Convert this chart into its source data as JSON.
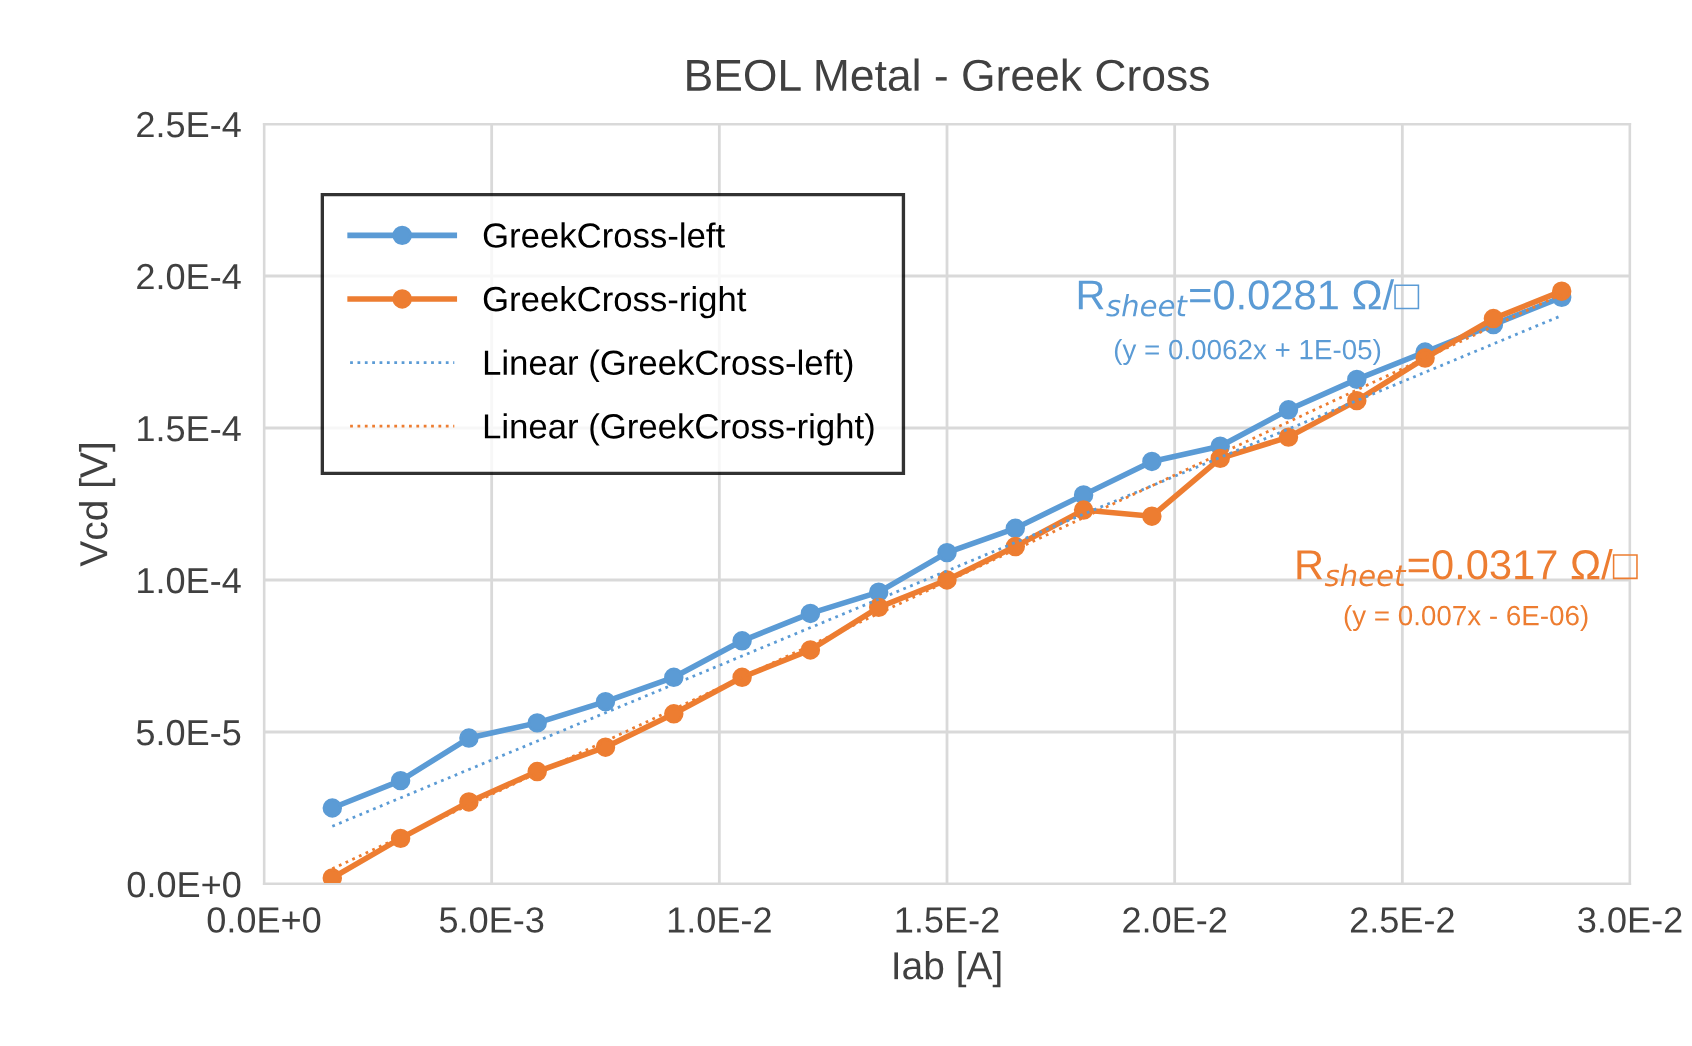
{
  "chart_data": {
    "type": "line",
    "title": "BEOL Metal - Greek Cross",
    "xlabel": "Iab [A]",
    "ylabel": "Vcd [V]",
    "series": [
      {
        "name": "GreekCross-left",
        "color": "#5b9bd5",
        "marker": "circle",
        "x": [
          0.0015,
          0.003,
          0.0045,
          0.006,
          0.0075,
          0.009,
          0.0105,
          0.012,
          0.0135,
          0.015,
          0.0165,
          0.018,
          0.0195,
          0.021,
          0.0225,
          0.024,
          0.0255,
          0.027,
          0.0285
        ],
        "values": [
          2.5e-05,
          3.4e-05,
          4.8e-05,
          5.3e-05,
          6e-05,
          6.8e-05,
          8e-05,
          8.9e-05,
          9.6e-05,
          0.000109,
          0.000117,
          0.000128,
          0.000139,
          0.000144,
          0.000156,
          0.000166,
          0.000175,
          0.000184,
          0.000193
        ]
      },
      {
        "name": "GreekCross-right",
        "color": "#ed7d31",
        "marker": "circle",
        "x": [
          0.0015,
          0.003,
          0.0045,
          0.006,
          0.0075,
          0.009,
          0.0105,
          0.012,
          0.0135,
          0.015,
          0.0165,
          0.018,
          0.0195,
          0.021,
          0.0225,
          0.024,
          0.0255,
          0.027,
          0.0285
        ],
        "values": [
          2e-06,
          1.5e-05,
          2.7e-05,
          3.7e-05,
          4.5e-05,
          5.6e-05,
          6.8e-05,
          7.7e-05,
          9.1e-05,
          0.0001,
          0.000111,
          0.000123,
          0.000121,
          0.00014,
          0.000147,
          0.000159,
          0.000173,
          0.000186,
          0.000195
        ]
      },
      {
        "name": "Linear (GreekCross-left)",
        "color": "#5b9bd5",
        "marker": "none",
        "line_style": "dotted",
        "x": [
          0.0015,
          0.0285
        ],
        "values": [
          1.9e-05,
          0.000187
        ]
      },
      {
        "name": "Linear (GreekCross-right)",
        "color": "#ed7d31",
        "marker": "none",
        "line_style": "dotted",
        "x": [
          0.0015,
          0.0285
        ],
        "values": [
          5e-06,
          0.000194
        ]
      }
    ],
    "annotations": [
      "R$_{sheet}$=0.0281 Ω/□",
      "(y = 0.0062x + 1E-05)",
      "R$_{sheet}$=0.0317 Ω/□",
      "(y = 0.007x - 6E-06)"
    ],
    "xlim": [
      0,
      0.03
    ],
    "ylim": [
      0,
      0.00025
    ],
    "xticks": [
      {
        "value": 0,
        "label": "0.0E+0"
      },
      {
        "value": 0.005,
        "label": "5.0E-3"
      },
      {
        "value": 0.01,
        "label": "1.0E-2"
      },
      {
        "value": 0.015,
        "label": "1.5E-2"
      },
      {
        "value": 0.02,
        "label": "2.0E-2"
      },
      {
        "value": 0.025,
        "label": "2.5E-2"
      },
      {
        "value": 0.03,
        "label": "3.0E-2"
      }
    ],
    "yticks": [
      {
        "value": 0,
        "label": "0.0E+0"
      },
      {
        "value": 5e-05,
        "label": "5.0E-5"
      },
      {
        "value": 0.0001,
        "label": "1.0E-4"
      },
      {
        "value": 0.00015,
        "label": "1.5E-4"
      },
      {
        "value": 0.0002,
        "label": "2.0E-4"
      },
      {
        "value": 0.00025,
        "label": "2.5E-4"
      }
    ],
    "grid": true,
    "legend": "top left"
  }
}
